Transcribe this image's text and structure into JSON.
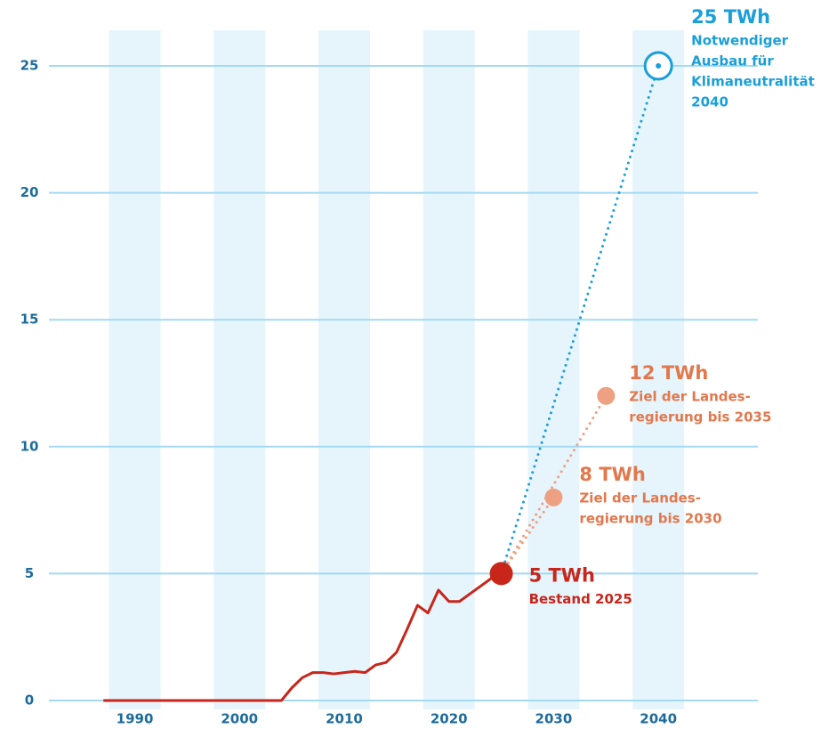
{
  "chart_data": {
    "type": "line",
    "xlim": [
      1981.8,
      2049.5
    ],
    "ylim": [
      0,
      25
    ],
    "xticks": [
      1990,
      2000,
      2010,
      2020,
      2030,
      2040
    ],
    "yticks": [
      0,
      5,
      10,
      15,
      20,
      25
    ],
    "grid": true,
    "series": [
      {
        "color": "#c8261b",
        "x": [
          1987,
          2004,
          2005,
          2006,
          2007,
          2008,
          2009,
          2010,
          2011,
          2012,
          2013,
          2014,
          2015,
          2016,
          2017,
          2018,
          2019,
          2020,
          2021,
          2022,
          2023,
          2024,
          2025
        ],
        "values": [
          0,
          0,
          0.5,
          0.9,
          1.1,
          1.1,
          1.05,
          1.1,
          1.15,
          1.1,
          1.4,
          1.5,
          1.9,
          2.8,
          3.75,
          3.45,
          4.35,
          3.9,
          3.9,
          4.2,
          4.5,
          4.8,
          5
        ]
      }
    ],
    "annotations": [
      {
        "x": 2025,
        "value": 5,
        "label": "5 TWh",
        "text": [
          "Bestand 2025"
        ],
        "color": "#c8261b",
        "text_color": "#c8261b"
      },
      {
        "x": 2030,
        "value": 8,
        "label": "8 TWh",
        "text": [
          "Ziel der Landes-",
          "regierung bis 2030"
        ],
        "color": "#eda181",
        "text_color": "#e2784c"
      },
      {
        "x": 2035,
        "value": 12,
        "label": "12 TWh",
        "text": [
          "Ziel der Landes-",
          "regierung bis 2035"
        ],
        "color": "#eda181",
        "text_color": "#e2784c"
      },
      {
        "x": 2040,
        "value": 25,
        "label": "25 TWh",
        "text": [
          "Notwendiger",
          "Ausbau für",
          "Klimaneutralität",
          "2040"
        ],
        "color": "#1a9fd9",
        "text_color": "#1a9fd9"
      }
    ]
  }
}
